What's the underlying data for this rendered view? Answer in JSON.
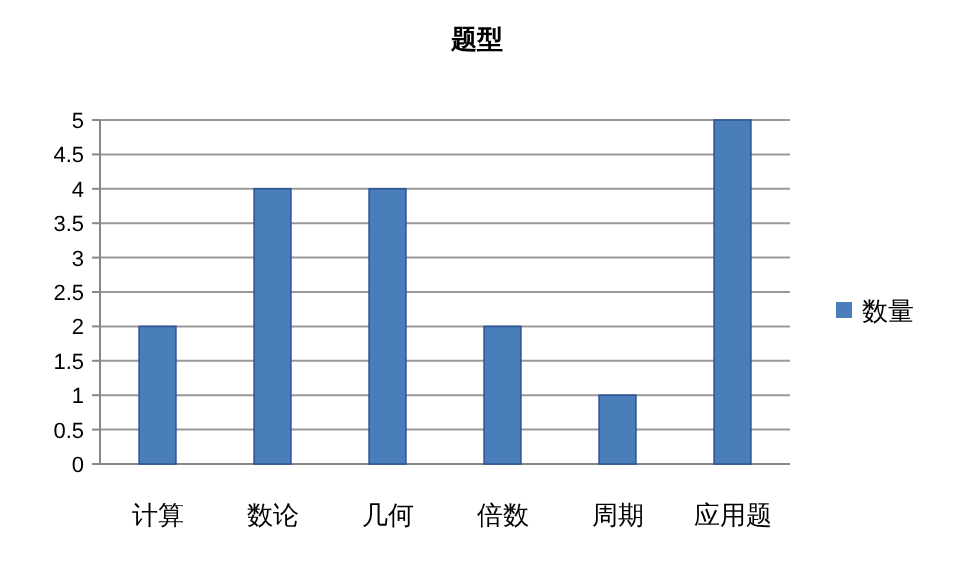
{
  "chart_data": {
    "type": "bar",
    "title": "题型",
    "categories": [
      "计算",
      "数论",
      "几何",
      "倍数",
      "周期",
      "应用题"
    ],
    "series": [
      {
        "name": "数量",
        "color": "#4a7ebb",
        "values": [
          2,
          4,
          4,
          2,
          1,
          5
        ]
      }
    ],
    "ylim": [
      0,
      5
    ],
    "yticks": [
      0,
      0.5,
      1,
      1.5,
      2,
      2.5,
      3,
      3.5,
      4,
      4.5,
      5
    ],
    "grid": "y",
    "legend": "right"
  }
}
